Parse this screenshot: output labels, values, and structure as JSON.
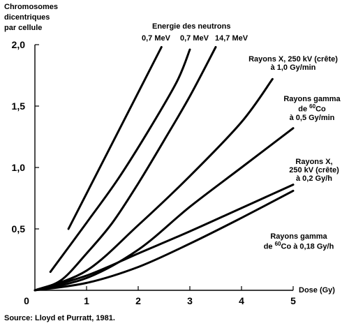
{
  "chart_data": {
    "type": "line",
    "title": "",
    "ylabel": [
      "Chromosomes",
      "dicentriques",
      "par cellule"
    ],
    "xlabel": "Dose (Gy)",
    "xlim": [
      0,
      5
    ],
    "ylim": [
      0,
      2.0
    ],
    "x_ticks": [
      "0",
      "1",
      "2",
      "3",
      "4",
      "5"
    ],
    "y_ticks": [
      "0",
      "0,5",
      "1,0",
      "1,5",
      "2,0"
    ],
    "grid": false,
    "annotations": {
      "neutron_header": "Energie des neutrons",
      "neutron_a": "0,7 MeV",
      "neutron_b": "0,7 MeV",
      "neutron_c": "14,7 MeV",
      "xray_high": [
        "Rayons X, 250 kV (crête)",
        "à 1,0 Gy/min"
      ],
      "gamma_high": [
        "Rayons gamma",
        "de ",
        "60",
        "Co",
        "à 0,5 Gy/min"
      ],
      "xray_low": [
        "Rayons X,",
        "250 kV (crête)",
        "à 0,2 Gy/h"
      ],
      "gamma_low": [
        "Rayons gamma",
        "de ",
        "60",
        "Co à 0,18 Gy/h"
      ]
    },
    "series": [
      {
        "x": [
          0.65,
          2.45
        ],
        "y": [
          0.5,
          1.98
        ]
      },
      {
        "x": [
          0.3,
          1.0,
          1.6,
          2.2,
          2.75,
          3.0
        ],
        "y": [
          0.15,
          0.55,
          0.9,
          1.3,
          1.7,
          1.96
        ]
      },
      {
        "x": [
          0.0,
          0.5,
          1.0,
          1.5,
          2.0,
          2.5,
          3.0,
          3.5
        ],
        "y": [
          0.0,
          0.08,
          0.3,
          0.55,
          0.87,
          1.22,
          1.58,
          1.98
        ]
      },
      {
        "x": [
          0.0,
          1.0,
          2.0,
          3.0,
          4.0,
          4.6
        ],
        "y": [
          0.0,
          0.16,
          0.53,
          0.93,
          1.37,
          1.72
        ]
      },
      {
        "x": [
          0.0,
          1.0,
          2.0,
          3.0,
          4.0,
          5.0
        ],
        "y": [
          0.0,
          0.1,
          0.33,
          0.68,
          1.0,
          1.32
        ]
      },
      {
        "x": [
          0.0,
          1.0,
          2.0,
          3.0,
          4.0,
          5.0
        ],
        "y": [
          0.0,
          0.12,
          0.3,
          0.48,
          0.67,
          0.86
        ]
      },
      {
        "x": [
          0.0,
          1.0,
          2.0,
          3.0,
          4.0,
          5.0
        ],
        "y": [
          0.0,
          0.06,
          0.19,
          0.38,
          0.59,
          0.81
        ]
      }
    ]
  },
  "source": "Source: Lloyd et Purratt, 1981."
}
